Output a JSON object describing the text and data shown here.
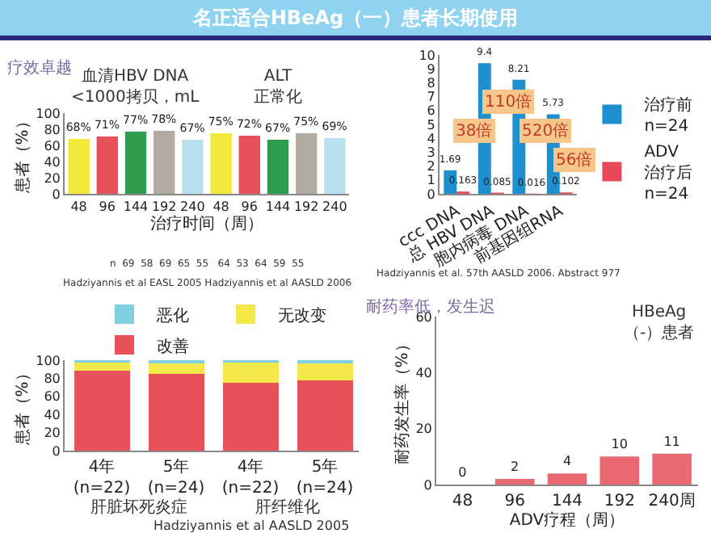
{
  "chart_data": [
    {
      "type": "bar",
      "title": "名正适合HBeAg（一）患者长期使用",
      "subtitle": "疗效卓越",
      "ylabel": "患者（%）",
      "xlabel": "治疗时间（周）",
      "categories": [
        "48",
        "96",
        "144",
        "192",
        "240",
        "48",
        "96",
        "144",
        "192",
        "240"
      ],
      "values": [
        68,
        71,
        77,
        78,
        67,
        75,
        72,
        67,
        75,
        69
      ],
      "colors": [
        "#f2e83a",
        "#e8505a",
        "#2e9e4e",
        "#b3aaa2",
        "#b8e0f0",
        "#f2e83a",
        "#e8505a",
        "#2e9e4e",
        "#b3aaa2",
        "#b8e0f0"
      ],
      "value_labels": [
        "68%",
        "71%",
        "77%",
        "78%",
        "67%",
        "75%",
        "72%",
        "67%",
        "75%",
        "69%"
      ],
      "ylim": [
        0,
        100
      ],
      "yticks": [
        0,
        20,
        40,
        60,
        80,
        100
      ],
      "annotations": [
        "血清HBV DNA\n<1000拷贝，mL",
        "ALT\n正常化",
        "n  69  58  69  65  55   64  53  64  59  55",
        "Hadziyannis et al EASL 2005 Hadziyannis et al AASLD 2006"
      ]
    },
    {
      "type": "bar",
      "categories": [
        "ccc DNA",
        "总 HBV DNA",
        "胞内病毒 DNA",
        "前基因组RNA"
      ],
      "series": [
        {
          "name": "治疗前\nn=24",
          "color": "#1e90d0",
          "values": [
            1.69,
            9.4,
            8.21,
            5.73
          ],
          "value_labels": [
            "1.69",
            "9.4",
            "8.21",
            "5.73"
          ]
        },
        {
          "name": "ADV\n治疗后\nn=24",
          "color": "#e84a5a",
          "values": [
            0.163,
            0.085,
            0.016,
            0.102
          ],
          "value_labels": [
            "0.163",
            "0.085",
            "0.016",
            "0.102"
          ]
        }
      ],
      "ylim": [
        0,
        10
      ],
      "yticks": [
        0,
        1,
        2,
        3,
        4,
        5,
        6,
        7,
        8,
        9,
        10
      ],
      "legend": "right",
      "annotations": [
        "38倍",
        "110倍",
        "520倍",
        "56倍",
        "Hadziyannis et al. 57th AASLD 2006. Abstract 977"
      ]
    },
    {
      "type": "bar",
      "stacked": true,
      "ylabel": "患者（%）",
      "categories": [
        "4年(n=22)",
        "5年(n=24)",
        "4年(n=22)",
        "5年(n=24)"
      ],
      "series": [
        {
          "name": "改善",
          "color": "#e8505a",
          "values": [
            88,
            85,
            75,
            78
          ]
        },
        {
          "name": "无改变",
          "color": "#f5e84a",
          "values": [
            9,
            11,
            22,
            18
          ]
        },
        {
          "name": "恶化",
          "color": "#7fd0e0",
          "values": [
            3,
            4,
            3,
            4
          ]
        }
      ],
      "ylim": [
        0,
        100
      ],
      "yticks": [
        0,
        20,
        40,
        60,
        80,
        100
      ],
      "legend": "top",
      "annotations": [
        "肝脏坏死炎症",
        "肝纤维化",
        "Hadziyannis et al AASLD 2005"
      ]
    },
    {
      "type": "bar",
      "title": "耐药率低，发生迟",
      "ylabel": "耐药发生率（%）",
      "xlabel": "ADV疗程（周）",
      "categories": [
        "48",
        "96",
        "144",
        "192",
        "240周"
      ],
      "values": [
        0,
        2,
        4,
        10,
        11
      ],
      "color": "#e86a70",
      "data_labels": true,
      "ylim": [
        0,
        60
      ],
      "yticks": [
        0,
        20,
        40,
        60
      ],
      "annotations": [
        "HBeAg\n（-）患者"
      ]
    }
  ]
}
